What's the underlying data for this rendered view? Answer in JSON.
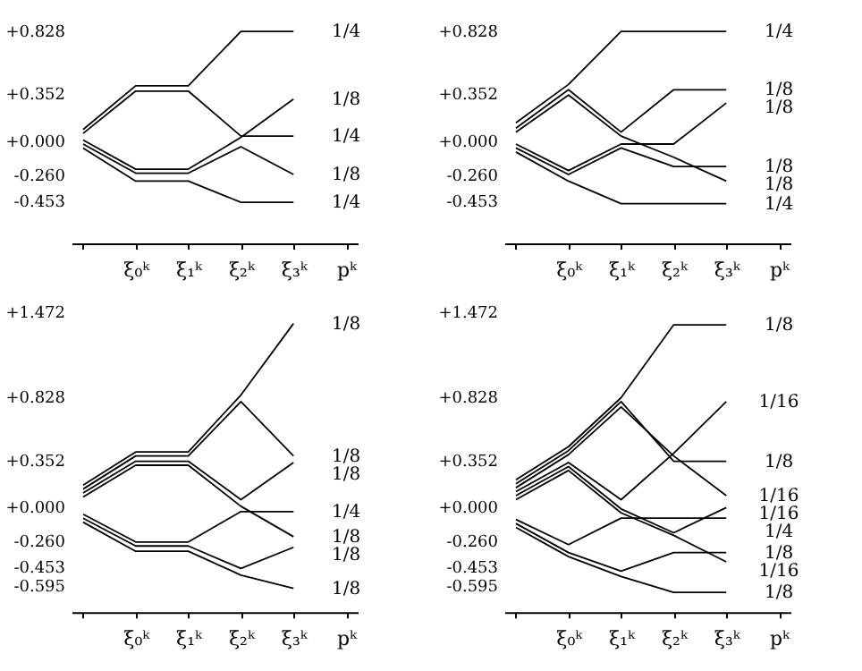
{
  "chart_data": [
    {
      "type": "line",
      "categories": [
        null,
        "ξ₀ᵏ",
        "ξ₁ᵏ",
        "ξ₂ᵏ",
        "ξ₃ᵏ",
        "pᵏ"
      ],
      "ylim": [
        -0.78,
        0.828
      ],
      "yticks": [
        {
          "value": 0.828,
          "label": "+0.828"
        },
        {
          "value": 0.352,
          "label": "+0.352"
        },
        {
          "value": 0,
          "label": "+0.000"
        },
        {
          "value": -0.26,
          "label": "-0.260"
        },
        {
          "value": -0.453,
          "label": "-0.453"
        }
      ],
      "series": [
        {
          "name": "1/4",
          "color": "#000000",
          "values": [
            0.08,
            0.41,
            0.41,
            0.82,
            0.82,
            null
          ]
        },
        {
          "name": "1/4",
          "color": "#000000",
          "values": [
            0.05,
            0.37,
            0.37,
            0.03,
            0.03,
            null
          ]
        },
        {
          "name": "1/8",
          "color": "#000000",
          "values": [
            0.0,
            -0.22,
            -0.22,
            0.02,
            0.31,
            null
          ]
        },
        {
          "name": "1/8",
          "color": "#000000",
          "values": [
            -0.03,
            -0.25,
            -0.25,
            -0.05,
            -0.26,
            null
          ]
        },
        {
          "name": "1/4",
          "color": "#000000",
          "values": [
            -0.06,
            -0.31,
            -0.31,
            -0.47,
            -0.47,
            null
          ]
        }
      ]
    },
    {
      "type": "line",
      "categories": [
        null,
        "ξ₀ᵏ",
        "ξ₁ᵏ",
        "ξ₂ᵏ",
        "ξ₃ᵏ",
        "pᵏ"
      ],
      "ylim": [
        -0.78,
        0.828
      ],
      "yticks": [
        {
          "value": 0.828,
          "label": "+0.828"
        },
        {
          "value": 0.352,
          "label": "+0.352"
        },
        {
          "value": 0,
          "label": "+0.000"
        },
        {
          "value": -0.26,
          "label": "-0.260"
        },
        {
          "value": -0.453,
          "label": "-0.453"
        }
      ],
      "series": [
        {
          "name": "1/4",
          "color": "#000000",
          "values": [
            0.13,
            0.42,
            0.82,
            0.82,
            0.82,
            null
          ]
        },
        {
          "name": "1/8",
          "color": "#000000",
          "values": [
            0.09,
            0.38,
            0.06,
            0.38,
            0.38,
            null
          ]
        },
        {
          "name": "1/8",
          "color": "#000000",
          "values": [
            0.06,
            0.34,
            0.03,
            -0.13,
            -0.31,
            null
          ]
        },
        {
          "name": "1/8",
          "color": "#000000",
          "values": [
            -0.03,
            -0.23,
            -0.03,
            -0.03,
            0.28,
            null
          ]
        },
        {
          "name": "1/8",
          "color": "#000000",
          "values": [
            -0.06,
            -0.26,
            -0.06,
            -0.2,
            -0.2,
            null
          ]
        },
        {
          "name": "1/4",
          "color": "#000000",
          "values": [
            -0.09,
            -0.31,
            -0.48,
            -0.48,
            -0.48,
            null
          ]
        }
      ]
    },
    {
      "type": "line",
      "categories": [
        null,
        "ξ₀ᵏ",
        "ξ₁ᵏ",
        "ξ₂ᵏ",
        "ξ₃ᵏ",
        "pᵏ"
      ],
      "ylim": [
        -0.8,
        1.472
      ],
      "yticks": [
        {
          "value": 1.472,
          "label": "+1.472"
        },
        {
          "value": 0.828,
          "label": "+0.828"
        },
        {
          "value": 0.352,
          "label": "+0.352"
        },
        {
          "value": 0,
          "label": "+0.000"
        },
        {
          "value": -0.26,
          "label": "-0.260"
        },
        {
          "value": -0.453,
          "label": "-0.453"
        },
        {
          "value": -0.595,
          "label": "-0.595"
        }
      ],
      "series": [
        {
          "name": "1/8",
          "color": "#000000",
          "values": [
            0.16,
            0.41,
            0.41,
            0.84,
            1.38,
            null
          ]
        },
        {
          "name": "1/8",
          "color": "#000000",
          "values": [
            0.13,
            0.38,
            0.38,
            0.79,
            0.38,
            null
          ]
        },
        {
          "name": "1/8",
          "color": "#000000",
          "values": [
            0.1,
            0.34,
            0.34,
            0.05,
            0.33,
            null
          ]
        },
        {
          "name": "1/8",
          "color": "#000000",
          "values": [
            0.07,
            0.31,
            0.31,
            0.0,
            -0.23,
            null
          ]
        },
        {
          "name": "1/4",
          "color": "#000000",
          "values": [
            -0.06,
            -0.27,
            -0.27,
            -0.04,
            -0.04,
            null
          ]
        },
        {
          "name": "1/8",
          "color": "#000000",
          "values": [
            -0.09,
            -0.3,
            -0.3,
            -0.47,
            -0.31,
            null
          ]
        },
        {
          "name": "1/8",
          "color": "#000000",
          "values": [
            -0.12,
            -0.34,
            -0.34,
            -0.52,
            -0.62,
            null
          ]
        }
      ]
    },
    {
      "type": "line",
      "categories": [
        null,
        "ξ₀ᵏ",
        "ξ₁ᵏ",
        "ξ₂ᵏ",
        "ξ₃ᵏ",
        "pᵏ"
      ],
      "ylim": [
        -0.8,
        1.472
      ],
      "yticks": [
        {
          "value": 1.472,
          "label": "+1.472"
        },
        {
          "value": 0.828,
          "label": "+0.828"
        },
        {
          "value": 0.352,
          "label": "+0.352"
        },
        {
          "value": 0,
          "label": "+0.000"
        },
        {
          "value": -0.26,
          "label": "-0.260"
        },
        {
          "value": -0.453,
          "label": "-0.453"
        },
        {
          "value": -0.595,
          "label": "-0.595"
        }
      ],
      "series": [
        {
          "name": "1/8",
          "color": "#000000",
          "values": [
            0.2,
            0.45,
            0.82,
            1.37,
            1.37,
            null
          ]
        },
        {
          "name": "1/16",
          "color": "#000000",
          "values": [
            0.11,
            0.33,
            0.05,
            0.4,
            0.79,
            null
          ]
        },
        {
          "name": "1/8",
          "color": "#000000",
          "values": [
            0.17,
            0.42,
            0.79,
            0.34,
            0.34,
            null
          ]
        },
        {
          "name": "1/16",
          "color": "#000000",
          "values": [
            0.14,
            0.39,
            0.75,
            0.38,
            0.08,
            null
          ]
        },
        {
          "name": "1/16",
          "color": "#000000",
          "values": [
            0.08,
            0.3,
            -0.02,
            -0.2,
            -0.01,
            null
          ]
        },
        {
          "name": "1/4",
          "color": "#000000",
          "values": [
            -0.1,
            -0.29,
            -0.09,
            -0.09,
            -0.09,
            null
          ]
        },
        {
          "name": "1/8",
          "color": "#000000",
          "values": [
            -0.13,
            -0.35,
            -0.49,
            -0.35,
            -0.35,
            null
          ]
        },
        {
          "name": "1/16",
          "color": "#000000",
          "values": [
            0.05,
            0.27,
            -0.05,
            -0.22,
            -0.42,
            null
          ]
        },
        {
          "name": "1/8",
          "color": "#000000",
          "values": [
            -0.16,
            -0.38,
            -0.53,
            -0.65,
            -0.65,
            null
          ]
        }
      ]
    }
  ]
}
